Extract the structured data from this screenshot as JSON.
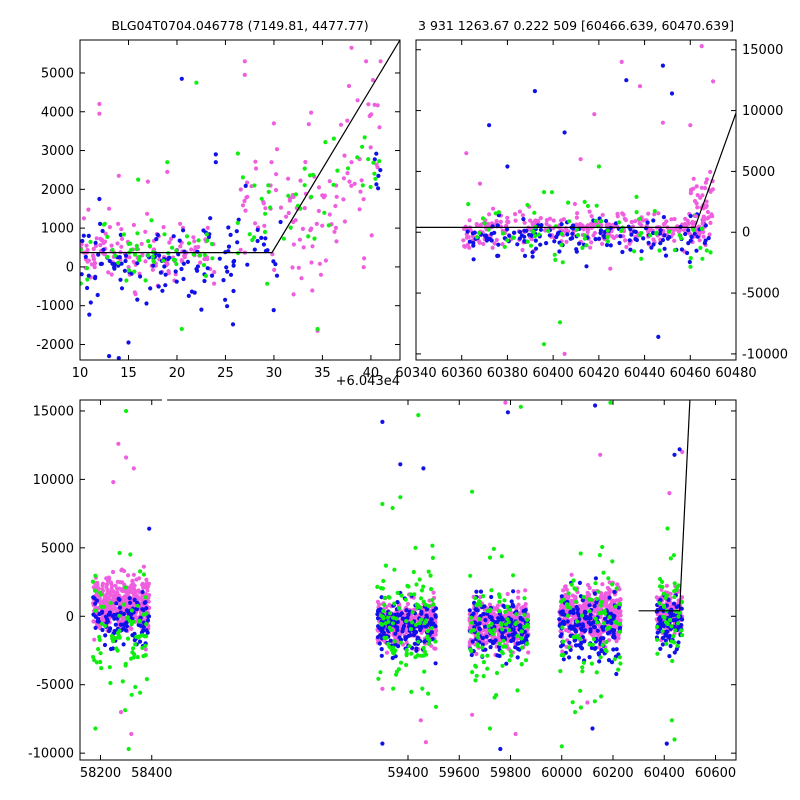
{
  "figure": {
    "colors": {
      "blue": "#1010e8",
      "green": "#10ee10",
      "magenta": "#ee5ede"
    }
  },
  "chart_data": [
    {
      "id": "zoom",
      "type": "scatter",
      "title": "BLG04T0704.046778 (7149.81, 4477.77)",
      "xlabel": "",
      "ylabel": "",
      "x_offset_label": "+6.043e4",
      "xlim": [
        10,
        43
      ],
      "ylim": [
        -2400,
        5850
      ],
      "xticks": [
        10,
        15,
        20,
        25,
        30,
        35,
        40
      ],
      "yticks": [
        -2000,
        -1000,
        0,
        1000,
        2000,
        3000,
        4000,
        5000
      ],
      "grid": false,
      "seed": 17,
      "groups": [
        {
          "color": "magenta",
          "x": [
            10,
            24
          ],
          "count": 130,
          "mean_y": 350,
          "sd_y": 380,
          "outliers": [
            [
              12,
              4200
            ],
            [
              12,
              3950
            ],
            [
              17,
              2200
            ],
            [
              14,
              2350
            ],
            [
              19,
              2450
            ],
            [
              13,
              1500
            ]
          ]
        },
        {
          "color": "blue",
          "x": [
            10,
            24
          ],
          "count": 90,
          "mean_y": 50,
          "sd_y": 500,
          "outliers": [
            [
              20.5,
              4850
            ],
            [
              13,
              -2300
            ],
            [
              14,
              -2350
            ],
            [
              15,
              -1950
            ],
            [
              12,
              1750
            ]
          ]
        },
        {
          "color": "green",
          "x": [
            10,
            24
          ],
          "count": 55,
          "mean_y": 300,
          "sd_y": 420,
          "outliers": [
            [
              19,
              2700
            ],
            [
              22,
              4750
            ],
            [
              16,
              2250
            ],
            [
              20.5,
              -1600
            ]
          ]
        },
        {
          "color": "magenta",
          "x": [
            26.5,
            36.5
          ],
          "count": 80,
          "mean_y": 1500,
          "sd_y": 900,
          "outliers": [
            [
              27,
              5300
            ],
            [
              27,
              4950
            ],
            [
              30,
              3700
            ],
            [
              34.5,
              -1650
            ],
            [
              38,
              2700
            ]
          ]
        },
        {
          "color": "blue",
          "x": [
            24,
            31
          ],
          "count": 35,
          "mean_y": 300,
          "sd_y": 800,
          "outliers": [
            [
              24,
              2900
            ],
            [
              24,
              2700
            ]
          ]
        },
        {
          "color": "green",
          "x": [
            26,
            36
          ],
          "count": 30,
          "mean_y": 1400,
          "sd_y": 800,
          "outliers": [
            [
              28,
              2100
            ],
            [
              34.5,
              -1600
            ]
          ]
        },
        {
          "color": "magenta",
          "x": [
            36.5,
            41
          ],
          "count": 30,
          "mean_y": 3000,
          "sd_y": 1300,
          "outliers": [
            [
              39.5,
              5300
            ],
            [
              38,
              5650
            ],
            [
              41,
              5300
            ]
          ]
        },
        {
          "color": "blue",
          "x": [
            40,
            41.2
          ],
          "count": 6,
          "mean_y": 2300,
          "sd_y": 500,
          "outliers": []
        },
        {
          "color": "green",
          "x": [
            36,
            41
          ],
          "count": 14,
          "mean_y": 2600,
          "sd_y": 700,
          "outliers": []
        }
      ],
      "line": [
        [
          10,
          370
        ],
        [
          29.8,
          370
        ],
        [
          43,
          5850
        ]
      ]
    },
    {
      "id": "mid",
      "type": "scatter",
      "title": "3 931 1263.67 0.222 509 [60466.639, 60470.639]",
      "xlabel": "",
      "ylabel": "",
      "xlim": [
        60340,
        60480
      ],
      "ylim": [
        -10500,
        15800
      ],
      "xticks": [
        60340,
        60360,
        60380,
        60400,
        60420,
        60440,
        60460,
        60480
      ],
      "yticks": [
        -10000,
        -5000,
        0,
        5000,
        10000,
        15000
      ],
      "y_axis_side": "right",
      "grid": false,
      "seed": 29,
      "groups": [
        {
          "color": "magenta",
          "x": [
            60360,
            60470
          ],
          "count": 300,
          "mean_y": 250,
          "sd_y": 700,
          "outliers": [
            [
              60362,
              6500
            ],
            [
              60368,
              4000
            ],
            [
              60412,
              6000
            ],
            [
              60418,
              9700
            ],
            [
              60430,
              14000
            ],
            [
              60438,
              12000
            ],
            [
              60448,
              9000
            ],
            [
              60460,
              8800
            ],
            [
              60470,
              12400
            ],
            [
              60465,
              15300
            ],
            [
              60405,
              -10000
            ],
            [
              60425,
              -3000
            ]
          ]
        },
        {
          "color": "blue",
          "x": [
            60362,
            60470
          ],
          "count": 160,
          "mean_y": -400,
          "sd_y": 800,
          "outliers": [
            [
              60372,
              8800
            ],
            [
              60380,
              5400
            ],
            [
              60392,
              11600
            ],
            [
              60405,
              8200
            ],
            [
              60432,
              12500
            ],
            [
              60448,
              13700
            ],
            [
              60452,
              11400
            ],
            [
              60446,
              -8600
            ]
          ]
        },
        {
          "color": "green",
          "x": [
            60362,
            60470
          ],
          "count": 75,
          "mean_y": 300,
          "sd_y": 1400,
          "outliers": [
            [
              60403,
              -7400
            ],
            [
              60396,
              -9200
            ],
            [
              60420,
              5400
            ],
            [
              60396,
              3300
            ]
          ]
        },
        {
          "color": "magenta",
          "x": [
            60460,
            60470
          ],
          "count": 40,
          "mean_y": 2500,
          "sd_y": 1500,
          "outliers": []
        }
      ],
      "line": [
        [
          60340,
          400
        ],
        [
          60462,
          400
        ],
        [
          60480,
          9800
        ]
      ]
    },
    {
      "id": "full",
      "type": "scatter",
      "title": "",
      "xlabel": "",
      "ylabel": "",
      "xlim": [
        58120,
        60680
      ],
      "ylim": [
        -10500,
        15800
      ],
      "xticks": [
        58200,
        58400,
        59400,
        59600,
        59800,
        60000,
        60200,
        60400,
        60600
      ],
      "yticks": [
        -10000,
        -5000,
        0,
        5000,
        10000,
        15000
      ],
      "grid": false,
      "seed": 41,
      "groups": [
        {
          "color": "magenta",
          "x": [
            58170,
            58390
          ],
          "count": 420,
          "mean_y": 800,
          "sd_y": 1000,
          "outliers": [
            [
              58270,
              12600
            ],
            [
              58300,
              11600
            ],
            [
              58330,
              10800
            ],
            [
              58250,
              9800
            ],
            [
              58280,
              -7000
            ],
            [
              58320,
              -8600
            ]
          ]
        },
        {
          "color": "blue",
          "x": [
            58170,
            58390
          ],
          "count": 110,
          "mean_y": -300,
          "sd_y": 900,
          "outliers": [
            [
              58320,
              16000
            ],
            [
              58390,
              6400
            ]
          ]
        },
        {
          "color": "green",
          "x": [
            58170,
            58390
          ],
          "count": 80,
          "mean_y": -1500,
          "sd_y": 2000,
          "outliers": [
            [
              58300,
              15000
            ],
            [
              58180,
              -8200
            ],
            [
              58310,
              -9700
            ]
          ]
        },
        {
          "color": "magenta",
          "x": [
            59280,
            59510
          ],
          "count": 380,
          "mean_y": -500,
          "sd_y": 800,
          "outliers": [
            [
              59300,
              -5300
            ],
            [
              59450,
              -7600
            ],
            [
              59470,
              -9200
            ]
          ]
        },
        {
          "color": "blue",
          "x": [
            59280,
            59510
          ],
          "count": 170,
          "mean_y": -700,
          "sd_y": 900,
          "outliers": [
            [
              59300,
              14200
            ],
            [
              59370,
              11100
            ],
            [
              59460,
              10800
            ],
            [
              59300,
              -9300
            ]
          ]
        },
        {
          "color": "green",
          "x": [
            59280,
            59510
          ],
          "count": 110,
          "mean_y": -600,
          "sd_y": 2400,
          "outliers": [
            [
              59440,
              14700
            ],
            [
              59300,
              8200
            ],
            [
              59370,
              8700
            ]
          ]
        },
        {
          "color": "magenta",
          "x": [
            59640,
            59870
          ],
          "count": 380,
          "mean_y": -700,
          "sd_y": 800,
          "outliers": [
            [
              59780,
              15600
            ],
            [
              59820,
              -8600
            ],
            [
              59650,
              -7200
            ]
          ]
        },
        {
          "color": "blue",
          "x": [
            59640,
            59870
          ],
          "count": 150,
          "mean_y": -900,
          "sd_y": 1000,
          "outliers": [
            [
              59790,
              14900
            ],
            [
              59760,
              -9700
            ]
          ]
        },
        {
          "color": "green",
          "x": [
            59640,
            59870
          ],
          "count": 90,
          "mean_y": -800,
          "sd_y": 2300,
          "outliers": [
            [
              59840,
              15300
            ],
            [
              59650,
              9100
            ],
            [
              59720,
              -8200
            ]
          ]
        },
        {
          "color": "magenta",
          "x": [
            59990,
            60230
          ],
          "count": 420,
          "mean_y": 100,
          "sd_y": 1000,
          "outliers": [
            [
              60150,
              11800
            ],
            [
              60100,
              -6300
            ]
          ]
        },
        {
          "color": "blue",
          "x": [
            59990,
            60230
          ],
          "count": 160,
          "mean_y": -900,
          "sd_y": 1300,
          "outliers": [
            [
              60130,
              15400
            ],
            [
              60120,
              -8200
            ]
          ]
        },
        {
          "color": "green",
          "x": [
            59990,
            60230
          ],
          "count": 80,
          "mean_y": -700,
          "sd_y": 2600,
          "outliers": [
            [
              60190,
              15600
            ],
            [
              60000,
              -9500
            ]
          ]
        },
        {
          "color": "magenta",
          "x": [
            60370,
            60470
          ],
          "count": 180,
          "mean_y": 400,
          "sd_y": 800,
          "outliers": [
            [
              60420,
              9000
            ],
            [
              60470,
              12000
            ]
          ]
        },
        {
          "color": "blue",
          "x": [
            60370,
            60470
          ],
          "count": 90,
          "mean_y": -400,
          "sd_y": 900,
          "outliers": [
            [
              60440,
              11800
            ],
            [
              60460,
              12200
            ],
            [
              60410,
              -9300
            ]
          ]
        },
        {
          "color": "green",
          "x": [
            60370,
            60470
          ],
          "count": 45,
          "mean_y": 300,
          "sd_y": 1800,
          "outliers": [
            [
              60430,
              -7600
            ],
            [
              60440,
              -9000
            ]
          ]
        }
      ],
      "line": [
        [
          60300,
          400
        ],
        [
          60460,
          400
        ],
        [
          60500,
          15800
        ]
      ]
    }
  ]
}
